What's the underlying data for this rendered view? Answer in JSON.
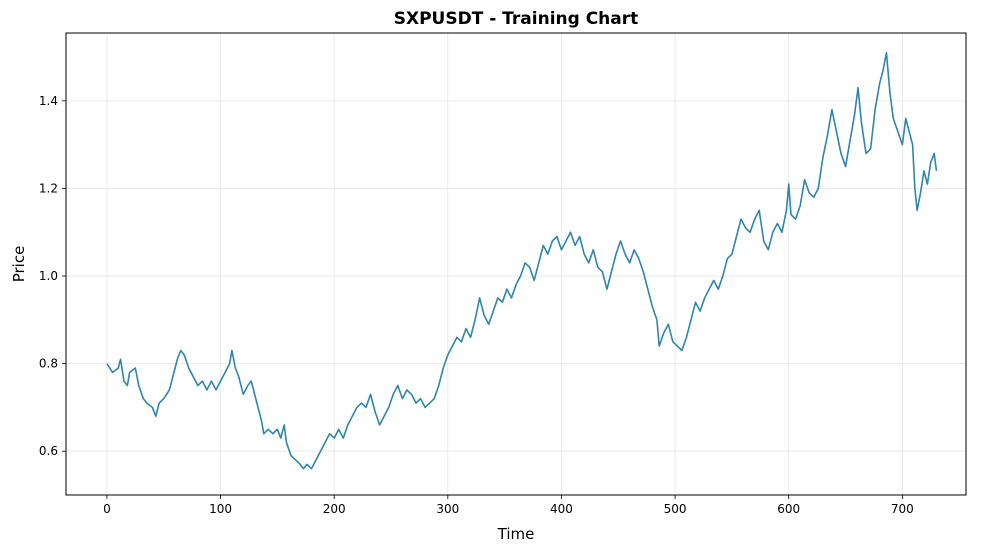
{
  "chart_data": {
    "type": "line",
    "title": "SXPUSDT - Training Chart",
    "xlabel": "Time",
    "ylabel": "Price",
    "xlim": [
      -36,
      756
    ],
    "ylim": [
      0.5,
      1.555
    ],
    "xticks": [
      0,
      100,
      200,
      300,
      400,
      500,
      600,
      700
    ],
    "yticks": [
      0.6,
      0.8,
      1.0,
      1.2,
      1.4
    ],
    "ytick_labels": [
      "0.6",
      "0.8",
      "1.0",
      "1.2",
      "1.4"
    ],
    "grid": true,
    "line_color": "#2e86ab",
    "series": [
      {
        "points": [
          [
            0,
            0.8
          ],
          [
            5,
            0.78
          ],
          [
            10,
            0.79
          ],
          [
            12,
            0.81
          ],
          [
            15,
            0.76
          ],
          [
            18,
            0.75
          ],
          [
            20,
            0.78
          ],
          [
            25,
            0.79
          ],
          [
            28,
            0.75
          ],
          [
            32,
            0.72
          ],
          [
            35,
            0.71
          ],
          [
            40,
            0.7
          ],
          [
            43,
            0.68
          ],
          [
            46,
            0.71
          ],
          [
            50,
            0.72
          ],
          [
            55,
            0.74
          ],
          [
            58,
            0.77
          ],
          [
            62,
            0.81
          ],
          [
            65,
            0.83
          ],
          [
            68,
            0.82
          ],
          [
            72,
            0.79
          ],
          [
            76,
            0.77
          ],
          [
            80,
            0.75
          ],
          [
            84,
            0.76
          ],
          [
            88,
            0.74
          ],
          [
            92,
            0.76
          ],
          [
            96,
            0.74
          ],
          [
            100,
            0.76
          ],
          [
            104,
            0.78
          ],
          [
            108,
            0.8
          ],
          [
            110,
            0.83
          ],
          [
            113,
            0.79
          ],
          [
            116,
            0.77
          ],
          [
            120,
            0.73
          ],
          [
            124,
            0.75
          ],
          [
            127,
            0.76
          ],
          [
            130,
            0.73
          ],
          [
            133,
            0.7
          ],
          [
            136,
            0.67
          ],
          [
            138,
            0.64
          ],
          [
            142,
            0.65
          ],
          [
            146,
            0.64
          ],
          [
            150,
            0.65
          ],
          [
            153,
            0.63
          ],
          [
            156,
            0.66
          ],
          [
            158,
            0.62
          ],
          [
            162,
            0.59
          ],
          [
            166,
            0.58
          ],
          [
            170,
            0.57
          ],
          [
            173,
            0.56
          ],
          [
            176,
            0.57
          ],
          [
            180,
            0.56
          ],
          [
            184,
            0.58
          ],
          [
            188,
            0.6
          ],
          [
            192,
            0.62
          ],
          [
            196,
            0.64
          ],
          [
            200,
            0.63
          ],
          [
            204,
            0.65
          ],
          [
            208,
            0.63
          ],
          [
            212,
            0.66
          ],
          [
            216,
            0.68
          ],
          [
            220,
            0.7
          ],
          [
            224,
            0.71
          ],
          [
            228,
            0.7
          ],
          [
            232,
            0.73
          ],
          [
            236,
            0.69
          ],
          [
            240,
            0.66
          ],
          [
            244,
            0.68
          ],
          [
            248,
            0.7
          ],
          [
            252,
            0.73
          ],
          [
            256,
            0.75
          ],
          [
            260,
            0.72
          ],
          [
            264,
            0.74
          ],
          [
            268,
            0.73
          ],
          [
            272,
            0.71
          ],
          [
            276,
            0.72
          ],
          [
            280,
            0.7
          ],
          [
            284,
            0.71
          ],
          [
            288,
            0.72
          ],
          [
            292,
            0.75
          ],
          [
            296,
            0.79
          ],
          [
            300,
            0.82
          ],
          [
            304,
            0.84
          ],
          [
            308,
            0.86
          ],
          [
            312,
            0.85
          ],
          [
            316,
            0.88
          ],
          [
            320,
            0.86
          ],
          [
            324,
            0.9
          ],
          [
            328,
            0.95
          ],
          [
            332,
            0.91
          ],
          [
            336,
            0.89
          ],
          [
            340,
            0.92
          ],
          [
            344,
            0.95
          ],
          [
            348,
            0.94
          ],
          [
            352,
            0.97
          ],
          [
            356,
            0.95
          ],
          [
            360,
            0.98
          ],
          [
            364,
            1.0
          ],
          [
            368,
            1.03
          ],
          [
            372,
            1.02
          ],
          [
            376,
            0.99
          ],
          [
            380,
            1.03
          ],
          [
            384,
            1.07
          ],
          [
            388,
            1.05
          ],
          [
            392,
            1.08
          ],
          [
            396,
            1.09
          ],
          [
            400,
            1.06
          ],
          [
            404,
            1.08
          ],
          [
            408,
            1.1
          ],
          [
            412,
            1.07
          ],
          [
            416,
            1.09
          ],
          [
            420,
            1.05
          ],
          [
            424,
            1.03
          ],
          [
            428,
            1.06
          ],
          [
            432,
            1.02
          ],
          [
            436,
            1.01
          ],
          [
            440,
            0.97
          ],
          [
            444,
            1.01
          ],
          [
            448,
            1.05
          ],
          [
            452,
            1.08
          ],
          [
            456,
            1.05
          ],
          [
            460,
            1.03
          ],
          [
            464,
            1.06
          ],
          [
            468,
            1.04
          ],
          [
            472,
            1.01
          ],
          [
            476,
            0.97
          ],
          [
            480,
            0.93
          ],
          [
            484,
            0.9
          ],
          [
            486,
            0.84
          ],
          [
            490,
            0.87
          ],
          [
            494,
            0.89
          ],
          [
            498,
            0.85
          ],
          [
            502,
            0.84
          ],
          [
            506,
            0.83
          ],
          [
            510,
            0.86
          ],
          [
            514,
            0.9
          ],
          [
            518,
            0.94
          ],
          [
            522,
            0.92
          ],
          [
            526,
            0.95
          ],
          [
            530,
            0.97
          ],
          [
            534,
            0.99
          ],
          [
            538,
            0.97
          ],
          [
            542,
            1.0
          ],
          [
            546,
            1.04
          ],
          [
            550,
            1.05
          ],
          [
            554,
            1.09
          ],
          [
            558,
            1.13
          ],
          [
            562,
            1.11
          ],
          [
            566,
            1.1
          ],
          [
            570,
            1.13
          ],
          [
            574,
            1.15
          ],
          [
            578,
            1.08
          ],
          [
            582,
            1.06
          ],
          [
            586,
            1.1
          ],
          [
            590,
            1.12
          ],
          [
            594,
            1.1
          ],
          [
            598,
            1.15
          ],
          [
            600,
            1.21
          ],
          [
            602,
            1.14
          ],
          [
            606,
            1.13
          ],
          [
            610,
            1.16
          ],
          [
            614,
            1.22
          ],
          [
            618,
            1.19
          ],
          [
            622,
            1.18
          ],
          [
            626,
            1.2
          ],
          [
            630,
            1.27
          ],
          [
            634,
            1.32
          ],
          [
            638,
            1.38
          ],
          [
            642,
            1.33
          ],
          [
            646,
            1.28
          ],
          [
            650,
            1.25
          ],
          [
            654,
            1.31
          ],
          [
            658,
            1.37
          ],
          [
            661,
            1.43
          ],
          [
            664,
            1.35
          ],
          [
            668,
            1.28
          ],
          [
            672,
            1.29
          ],
          [
            676,
            1.38
          ],
          [
            680,
            1.44
          ],
          [
            683,
            1.47
          ],
          [
            686,
            1.51
          ],
          [
            689,
            1.42
          ],
          [
            692,
            1.36
          ],
          [
            696,
            1.33
          ],
          [
            700,
            1.3
          ],
          [
            703,
            1.36
          ],
          [
            706,
            1.33
          ],
          [
            709,
            1.3
          ],
          [
            711,
            1.2
          ],
          [
            713,
            1.15
          ],
          [
            716,
            1.19
          ],
          [
            719,
            1.24
          ],
          [
            722,
            1.21
          ],
          [
            725,
            1.26
          ],
          [
            728,
            1.28
          ],
          [
            730,
            1.24
          ]
        ]
      }
    ]
  }
}
